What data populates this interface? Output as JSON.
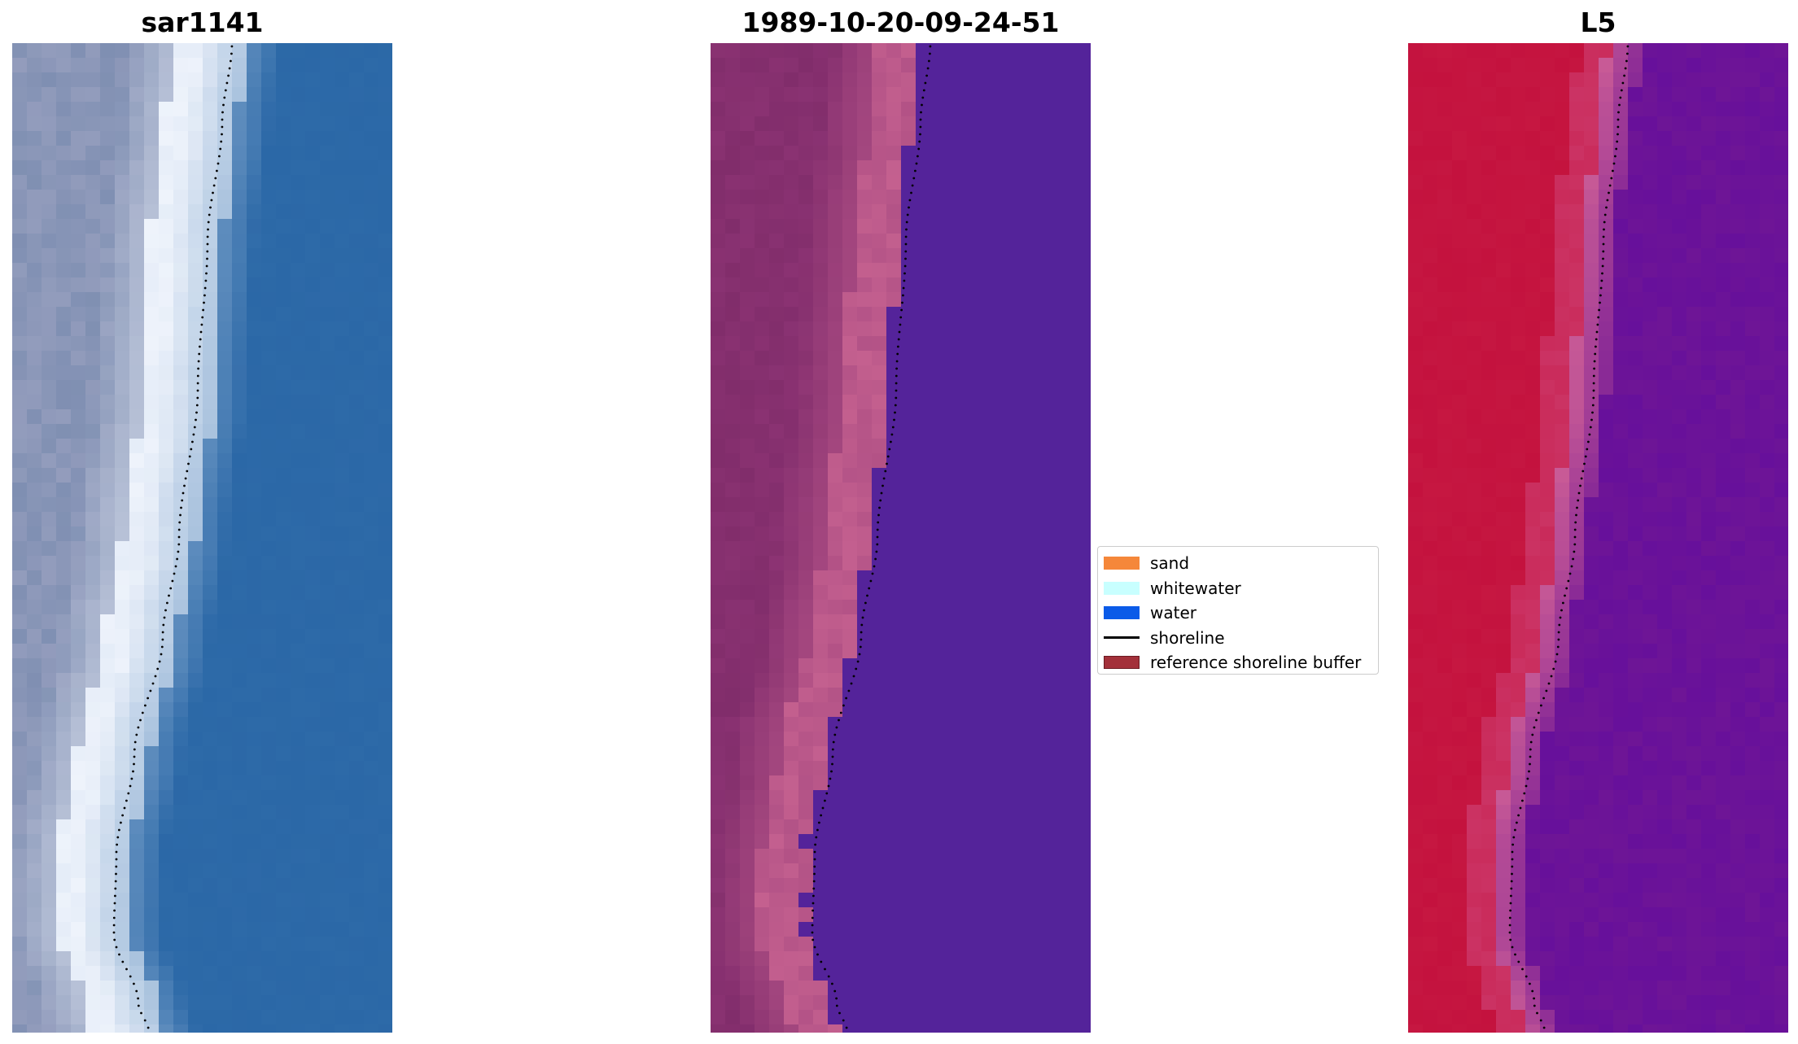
{
  "panels": [
    {
      "title": "sar1141"
    },
    {
      "title": "1989-10-20-09-24-51"
    },
    {
      "title": "L5"
    }
  ],
  "legend": {
    "items": [
      {
        "label": "sand",
        "kind": "patch",
        "color": "#f5873a"
      },
      {
        "label": "whitewater",
        "kind": "patch",
        "color": "#c8ffff"
      },
      {
        "label": "water",
        "kind": "patch",
        "color": "#0b5be8"
      },
      {
        "label": "shoreline",
        "kind": "line",
        "color": "#000000"
      },
      {
        "label": "reference shoreline buffer",
        "kind": "patch",
        "color": "#a3303a",
        "edge": "#6b1a22"
      }
    ]
  },
  "colors": {
    "rgb_water": "#2d6aa8",
    "rgb_surf": "#eef3fb",
    "rgb_land": "#7f8fb2",
    "class_water": "#54239a",
    "class_land": "#8a3272",
    "class_sand": "#c4608f",
    "ndwi_land": "#c4123e",
    "ndwi_water": "#6e1596",
    "shoreline_dots": "#000000"
  }
}
